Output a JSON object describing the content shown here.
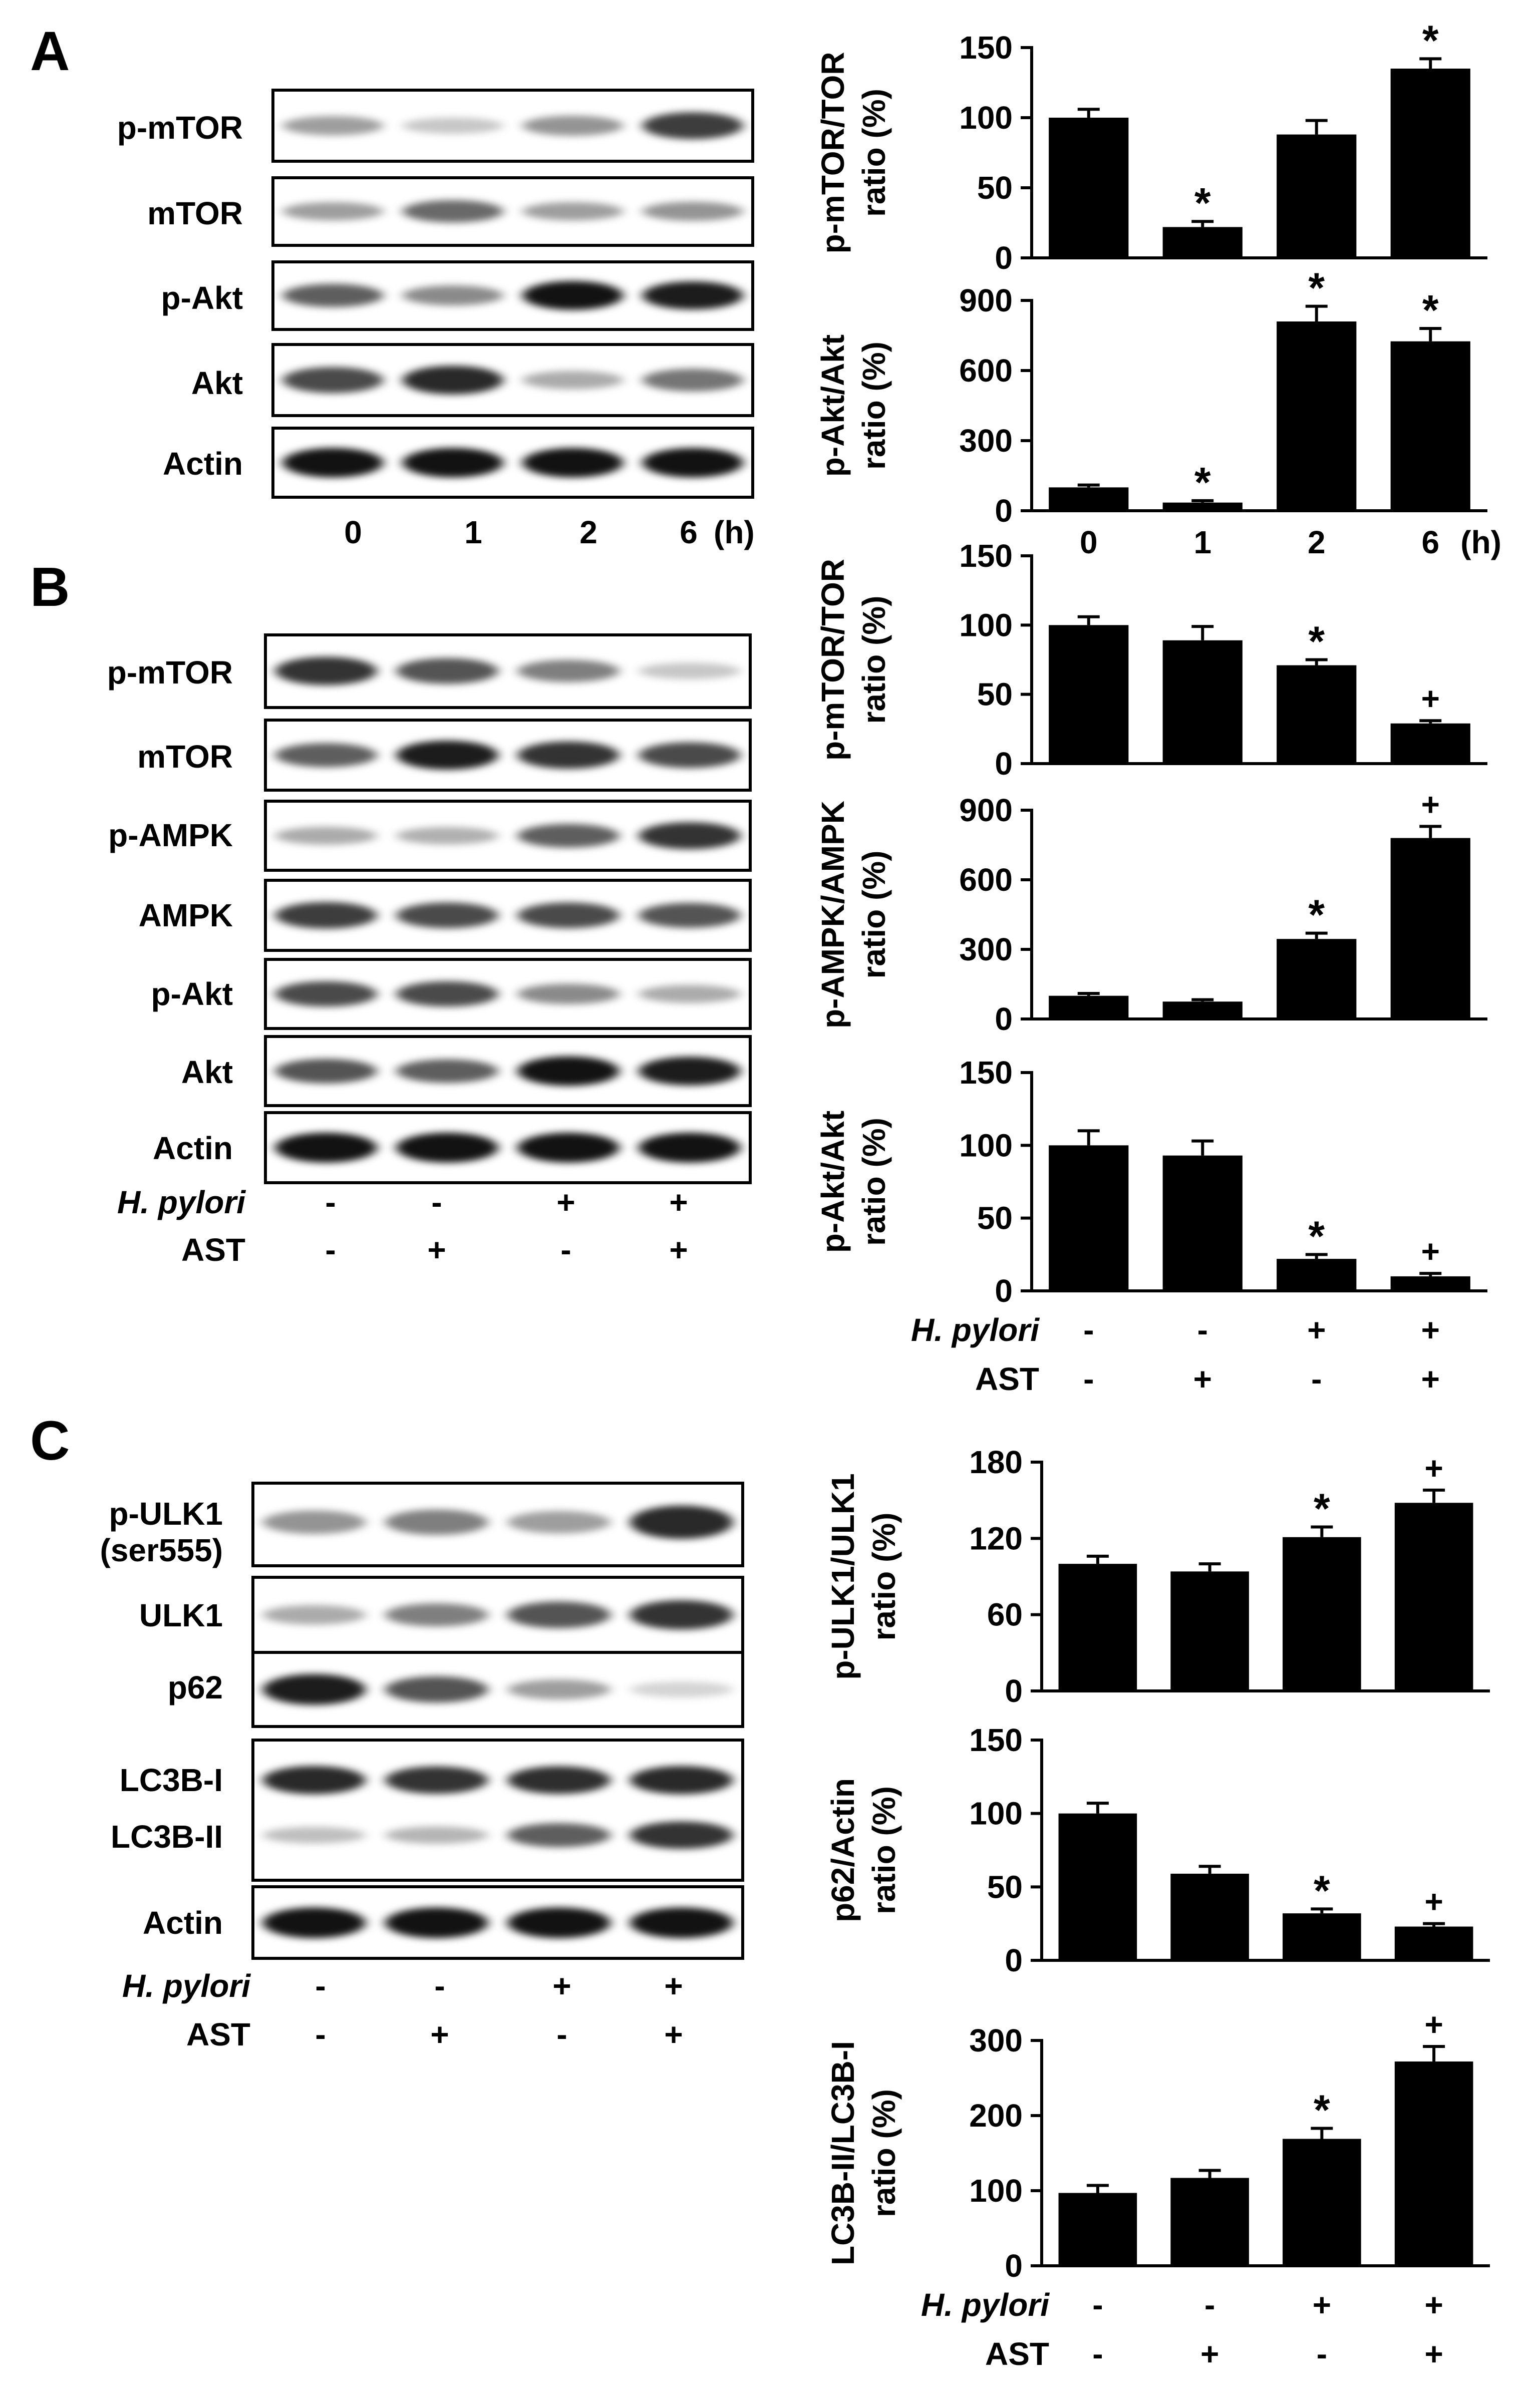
{
  "panels": [
    {
      "letter": "A",
      "lanes": [
        "0",
        "1",
        "2",
        "6"
      ],
      "lane_unit": "(h)",
      "blots": [
        {
          "label": "p-mTOR",
          "bands": [
            0.3,
            0.12,
            0.35,
            0.75
          ]
        },
        {
          "label": "mTOR",
          "bands": [
            0.3,
            0.55,
            0.3,
            0.35
          ]
        },
        {
          "label": "p-Akt",
          "bands": [
            0.6,
            0.4,
            0.95,
            0.9
          ]
        },
        {
          "label": "Akt",
          "bands": [
            0.7,
            0.85,
            0.25,
            0.5
          ]
        },
        {
          "label": "Actin",
          "bands": [
            0.95,
            0.95,
            0.95,
            0.95
          ]
        }
      ]
    },
    {
      "letter": "B",
      "conditions": [
        {
          "label": "H. pylori",
          "italic": true,
          "values": [
            "-",
            "-",
            "+",
            "+"
          ]
        },
        {
          "label": "AST",
          "italic": false,
          "values": [
            "-",
            "+",
            "-",
            "+"
          ]
        }
      ],
      "blots": [
        {
          "label": "p-mTOR",
          "bands": [
            0.8,
            0.65,
            0.45,
            0.12
          ]
        },
        {
          "label": "mTOR",
          "bands": [
            0.6,
            0.9,
            0.8,
            0.7
          ]
        },
        {
          "label": "p-AMPK",
          "bands": [
            0.25,
            0.22,
            0.6,
            0.8
          ]
        },
        {
          "label": "AMPK",
          "bands": [
            0.75,
            0.7,
            0.7,
            0.65
          ]
        },
        {
          "label": "p-Akt",
          "bands": [
            0.7,
            0.7,
            0.4,
            0.25
          ]
        },
        {
          "label": "Akt",
          "bands": [
            0.65,
            0.6,
            0.95,
            0.9
          ]
        },
        {
          "label": "Actin",
          "bands": [
            0.95,
            0.95,
            0.95,
            0.95
          ]
        }
      ]
    },
    {
      "letter": "C",
      "conditions": [
        {
          "label": "H. pylori",
          "italic": true,
          "values": [
            "-",
            "-",
            "+",
            "+"
          ]
        },
        {
          "label": "AST",
          "italic": false,
          "values": [
            "-",
            "+",
            "-",
            "+"
          ]
        }
      ],
      "blots": [
        {
          "label_lines": [
            "p-ULK1",
            "(ser555)"
          ],
          "bands": [
            0.35,
            0.45,
            0.3,
            0.85
          ]
        },
        {
          "label_lines": [
            "ULK1"
          ],
          "bands": [
            0.25,
            0.45,
            0.65,
            0.8
          ]
        },
        {
          "label_lines": [
            "p62"
          ],
          "bands": [
            0.9,
            0.65,
            0.3,
            0.06
          ]
        },
        {
          "label_lines": [
            "LC3B-I",
            "LC3B-II"
          ],
          "double": true,
          "bands": [
            0.85,
            0.8,
            0.82,
            0.85
          ],
          "bands2": [
            0.15,
            0.2,
            0.6,
            0.8
          ]
        },
        {
          "label_lines": [
            "Actin"
          ],
          "bands": [
            0.95,
            0.95,
            0.95,
            0.95
          ]
        }
      ]
    }
  ],
  "chart_data": [
    {
      "type": "bar",
      "panel": "A",
      "ylabel_lines": [
        "p-mTOR/TOR",
        "ratio (%)"
      ],
      "ylim": [
        0,
        150
      ],
      "yticks": [
        "0",
        "50",
        "100",
        "150"
      ],
      "values": [
        100,
        22,
        88,
        135
      ],
      "errors": [
        6,
        4,
        10,
        7
      ],
      "marks": [
        "",
        "*",
        "",
        "*"
      ]
    },
    {
      "type": "bar",
      "panel": "A",
      "ylabel_lines": [
        "p-Akt/Akt",
        "ratio (%)"
      ],
      "ylim": [
        0,
        900
      ],
      "yticks": [
        "0",
        "300",
        "600",
        "900"
      ],
      "values": [
        100,
        35,
        810,
        725
      ],
      "errors": [
        10,
        8,
        65,
        55
      ],
      "marks": [
        "",
        "*",
        "*",
        "*"
      ],
      "xlabels": [
        "0",
        "1",
        "2",
        "6"
      ],
      "xunit": "(h)"
    },
    {
      "type": "bar",
      "panel": "B",
      "ylabel_lines": [
        "p-mTOR/TOR",
        "ratio (%)"
      ],
      "ylim": [
        0,
        150
      ],
      "yticks": [
        "0",
        "50",
        "100",
        "150"
      ],
      "values": [
        100,
        89,
        71,
        29
      ],
      "errors": [
        6,
        10,
        4,
        2
      ],
      "marks": [
        "",
        "",
        "*",
        "+"
      ]
    },
    {
      "type": "bar",
      "panel": "B",
      "ylabel_lines": [
        "p-AMPK/AMPK",
        "ratio (%)"
      ],
      "ylim": [
        0,
        900
      ],
      "yticks": [
        "0",
        "300",
        "600",
        "900"
      ],
      "values": [
        100,
        75,
        345,
        780
      ],
      "errors": [
        10,
        8,
        25,
        50
      ],
      "marks": [
        "",
        "",
        "*",
        "+"
      ]
    },
    {
      "type": "bar",
      "panel": "B",
      "ylabel_lines": [
        "p-Akt/Akt",
        "ratio (%)"
      ],
      "ylim": [
        0,
        150
      ],
      "yticks": [
        "0",
        "50",
        "100",
        "150"
      ],
      "values": [
        100,
        93,
        22,
        10
      ],
      "errors": [
        10,
        10,
        3,
        2
      ],
      "marks": [
        "",
        "",
        "*",
        "+"
      ],
      "conditions": [
        {
          "label": "H. pylori",
          "italic": true,
          "values": [
            "-",
            "-",
            "+",
            "+"
          ]
        },
        {
          "label": "AST",
          "italic": false,
          "values": [
            "-",
            "+",
            "-",
            "+"
          ]
        }
      ]
    },
    {
      "type": "bar",
      "panel": "C",
      "ylabel_lines": [
        "p-ULK1/ULK1",
        "ratio (%)"
      ],
      "ylim": [
        0,
        180
      ],
      "yticks": [
        "0",
        "60",
        "120",
        "180"
      ],
      "values": [
        100,
        94,
        121,
        148
      ],
      "errors": [
        6,
        6,
        8,
        10
      ],
      "marks": [
        "",
        "",
        "*",
        "+"
      ]
    },
    {
      "type": "bar",
      "panel": "C",
      "ylabel_lines": [
        "p62/Actin",
        "ratio (%)"
      ],
      "ylim": [
        0,
        150
      ],
      "yticks": [
        "0",
        "50",
        "100",
        "150"
      ],
      "values": [
        100,
        59,
        32,
        23
      ],
      "errors": [
        7,
        5,
        3,
        2
      ],
      "marks": [
        "",
        "",
        "*",
        "+"
      ]
    },
    {
      "type": "bar",
      "panel": "C",
      "ylabel_lines": [
        "LC3B-II/LC3B-I",
        "ratio (%)"
      ],
      "ylim": [
        0,
        300
      ],
      "yticks": [
        "0",
        "100",
        "200",
        "300"
      ],
      "values": [
        97,
        117,
        169,
        272
      ],
      "errors": [
        10,
        10,
        14,
        20
      ],
      "marks": [
        "",
        "",
        "*",
        "+"
      ],
      "conditions": [
        {
          "label": "H. pylori",
          "italic": true,
          "values": [
            "-",
            "-",
            "+",
            "+"
          ]
        },
        {
          "label": "AST",
          "italic": false,
          "values": [
            "-",
            "+",
            "-",
            "+"
          ]
        }
      ]
    }
  ]
}
